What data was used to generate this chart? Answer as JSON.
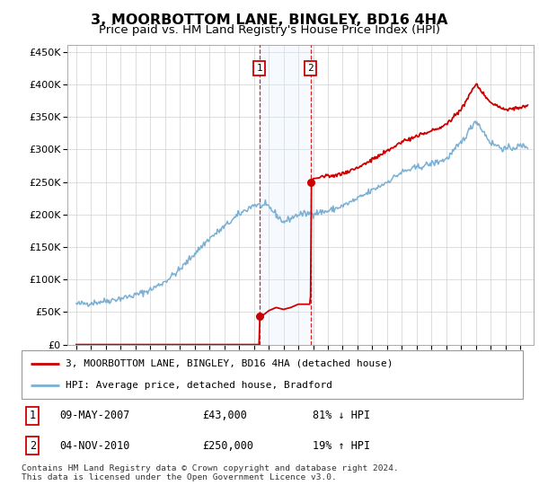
{
  "title": "3, MOORBOTTOM LANE, BINGLEY, BD16 4HA",
  "subtitle": "Price paid vs. HM Land Registry's House Price Index (HPI)",
  "legend_line1": "3, MOORBOTTOM LANE, BINGLEY, BD16 4HA (detached house)",
  "legend_line2": "HPI: Average price, detached house, Bradford",
  "sale1_date": "09-MAY-2007",
  "sale1_price": 43000,
  "sale2_date": "04-NOV-2010",
  "sale2_price": 250000,
  "footnote": "Contains HM Land Registry data © Crown copyright and database right 2024.\nThis data is licensed under the Open Government Licence v3.0.",
  "ylim": [
    0,
    460000
  ],
  "yticks": [
    0,
    50000,
    100000,
    150000,
    200000,
    250000,
    300000,
    350000,
    400000,
    450000
  ],
  "red_color": "#cc0000",
  "blue_color": "#7ab0d4",
  "shade_color": "#ddeeff",
  "title_fontsize": 12,
  "subtitle_fontsize": 10,
  "sale1_year": 2007.37,
  "sale2_year": 2010.84,
  "hpi_ctrl_x": [
    1995,
    1996,
    1997,
    1998,
    1999,
    2000,
    2001,
    2002,
    2003,
    2004,
    2005,
    2006,
    2007,
    2008,
    2009,
    2010,
    2011,
    2012,
    2013,
    2014,
    2015,
    2016,
    2017,
    2018,
    2019,
    2020,
    2021,
    2022,
    2023,
    2024,
    2025
  ],
  "hpi_ctrl_y": [
    62000,
    64000,
    67000,
    71000,
    76000,
    84000,
    97000,
    115000,
    140000,
    163000,
    181000,
    200000,
    215000,
    212000,
    188000,
    200000,
    202000,
    205000,
    213000,
    224000,
    237000,
    250000,
    265000,
    272000,
    278000,
    285000,
    310000,
    345000,
    310000,
    300000,
    305000
  ],
  "prop_ctrl_x": [
    1995,
    2007.36,
    2007.37,
    2007.5,
    2008.0,
    2008.5,
    2009.0,
    2009.5,
    2010.0,
    2010.83,
    2010.84,
    2011,
    2012,
    2013,
    2014,
    2015,
    2016,
    2017,
    2018,
    2019,
    2020,
    2021,
    2022,
    2023,
    2024,
    2025
  ],
  "prop_ctrl_y": [
    0,
    0,
    43000,
    43000,
    52000,
    57000,
    54000,
    57000,
    62000,
    62000,
    250000,
    255000,
    258000,
    263000,
    272000,
    284000,
    297000,
    312000,
    320000,
    328000,
    338000,
    362000,
    400000,
    372000,
    360000,
    365000
  ]
}
